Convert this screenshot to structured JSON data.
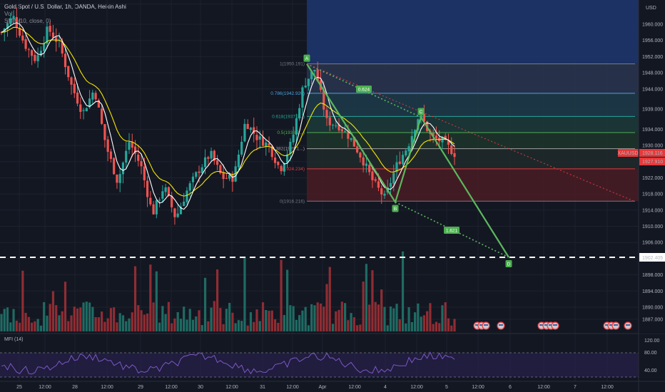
{
  "header": {
    "symbol_line": "Gold Spot / U.S. Dollar, 1h, OANDA, Heikin Ashi",
    "indicator_1": "Vol",
    "indicator_2": "SMA (10, close, 0)",
    "indicator_3": "EMA (... , 0)"
  },
  "price_axis": {
    "currency": "USD",
    "ticks": [
      "1965.000",
      "1960.000",
      "1956.000",
      "1952.000",
      "1948.000",
      "1944.000",
      "1939.000",
      "1934.000",
      "1930.000",
      "1926.000",
      "1922.000",
      "1918.000",
      "1914.000",
      "1910.000",
      "1906.000",
      "1902.000",
      "1898.000",
      "1894.000",
      "1890.000",
      "1887.000"
    ],
    "symbol_badge": "XAUUSD",
    "last_price": "1928.116",
    "prev_price": "1927.910",
    "dashed_level": "1902.405",
    "colors": {
      "badge": "#e5393a",
      "text": "#ffffff"
    }
  },
  "time_axis": {
    "labels": [
      "25",
      "12:00",
      "28",
      "12:00",
      "29",
      "12:00",
      "30",
      "12:00",
      "31",
      "12:00",
      "Apr",
      "12:00",
      "4",
      "12:00",
      "5",
      "12:00",
      "6",
      "12:00",
      "7",
      "12:00"
    ]
  },
  "fib_levels": [
    {
      "label": "1(1950.191)",
      "value": 1950.19
    },
    {
      "label": "0.786(1942.920)",
      "value": 1942.92
    },
    {
      "label": "0.618(1937.2...)",
      "value": 1937.2
    },
    {
      "label": "0.5(1933.2...)",
      "value": 1933.2
    },
    {
      "label": "0.382(1929.1...)",
      "value": 1929.2
    },
    {
      "label": "(1924.234)",
      "value": 1924.23
    },
    {
      "label": "0(1916.216)",
      "value": 1916.22
    }
  ],
  "pattern": {
    "points": [
      "A",
      "B",
      "C",
      "D"
    ],
    "ratio_ac": "0.624",
    "ratio_bd": "1.621"
  },
  "mfi": {
    "label": "MFI (14)",
    "ticks": [
      "120.00",
      "80.00",
      "40.00"
    ]
  },
  "event_icons": {
    "count": 12
  },
  "chart_data": {
    "type": "candlestick",
    "title": "Gold Spot / U.S. Dollar, 1h, OANDA, Heikin Ashi",
    "ylim": [
      1884,
      1966
    ],
    "last": 1928.116,
    "series": [
      {
        "name": "XAUUSD",
        "close_path": [
          1958,
          1962,
          1955,
          1951,
          1959,
          1955,
          1945,
          1938,
          1944,
          1930,
          1921,
          1931,
          1925,
          1913,
          1920,
          1912,
          1919,
          1924,
          1928,
          1922,
          1922,
          1936,
          1932,
          1930,
          1924,
          1931,
          1945,
          1949,
          1936,
          1935,
          1932,
          1927,
          1921,
          1917,
          1925,
          1930,
          1938,
          1932,
          1931,
          1928
        ]
      },
      {
        "name": "SMA",
        "color": "#ffffff"
      },
      {
        "name": "EMA",
        "color": "#f5e600"
      }
    ]
  }
}
